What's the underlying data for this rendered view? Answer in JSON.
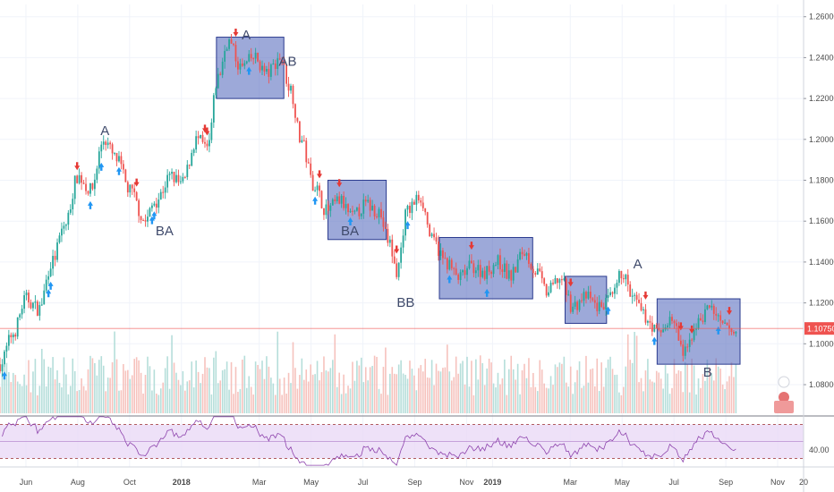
{
  "chart_data": {
    "type": "candlestick",
    "price_axis": {
      "ticks": [
        "1.26000",
        "1.24000",
        "1.22000",
        "1.20000",
        "1.18000",
        "1.16000",
        "1.14000",
        "1.12000",
        "1.10000",
        "1.08000"
      ],
      "range": [
        1.066,
        1.266
      ],
      "current_price_label": "1.10750",
      "current_price": 1.1075,
      "current_price_color": "#ef5350"
    },
    "time_axis": {
      "ticks": [
        "Jun",
        "Aug",
        "Oct",
        "2018",
        "Mar",
        "May",
        "Jul",
        "Sep",
        "Nov",
        "2019",
        "Mar",
        "May",
        "Jul",
        "Sep",
        "Nov",
        "20"
      ],
      "range_months": [
        0,
        31
      ]
    },
    "price_path": [
      {
        "m": 0.0,
        "p": 1.09
      },
      {
        "m": 0.5,
        "p": 1.105
      },
      {
        "m": 1.0,
        "p": 1.122
      },
      {
        "m": 1.5,
        "p": 1.117
      },
      {
        "m": 2.0,
        "p": 1.14
      },
      {
        "m": 2.5,
        "p": 1.158
      },
      {
        "m": 3.0,
        "p": 1.182
      },
      {
        "m": 3.5,
        "p": 1.175
      },
      {
        "m": 4.0,
        "p": 1.2
      },
      {
        "m": 4.5,
        "p": 1.19
      },
      {
        "m": 5.0,
        "p": 1.175
      },
      {
        "m": 5.6,
        "p": 1.16
      },
      {
        "m": 6.0,
        "p": 1.17
      },
      {
        "m": 6.6,
        "p": 1.182
      },
      {
        "m": 7.0,
        "p": 1.178
      },
      {
        "m": 7.6,
        "p": 1.2
      },
      {
        "m": 8.0,
        "p": 1.195
      },
      {
        "m": 8.4,
        "p": 1.23
      },
      {
        "m": 8.8,
        "p": 1.248
      },
      {
        "m": 9.3,
        "p": 1.235
      },
      {
        "m": 9.8,
        "p": 1.24
      },
      {
        "m": 10.3,
        "p": 1.232
      },
      {
        "m": 10.8,
        "p": 1.24
      },
      {
        "m": 11.2,
        "p": 1.225
      },
      {
        "m": 11.6,
        "p": 1.2
      },
      {
        "m": 12.1,
        "p": 1.178
      },
      {
        "m": 12.6,
        "p": 1.165
      },
      {
        "m": 13.1,
        "p": 1.17
      },
      {
        "m": 13.6,
        "p": 1.162
      },
      {
        "m": 14.1,
        "p": 1.168
      },
      {
        "m": 14.6,
        "p": 1.165
      },
      {
        "m": 15.0,
        "p": 1.15
      },
      {
        "m": 15.3,
        "p": 1.135
      },
      {
        "m": 15.7,
        "p": 1.165
      },
      {
        "m": 16.2,
        "p": 1.172
      },
      {
        "m": 16.7,
        "p": 1.15
      },
      {
        "m": 17.2,
        "p": 1.14
      },
      {
        "m": 17.7,
        "p": 1.132
      },
      {
        "m": 18.2,
        "p": 1.138
      },
      {
        "m": 18.7,
        "p": 1.135
      },
      {
        "m": 19.2,
        "p": 1.14
      },
      {
        "m": 19.7,
        "p": 1.133
      },
      {
        "m": 20.2,
        "p": 1.145
      },
      {
        "m": 20.7,
        "p": 1.135
      },
      {
        "m": 21.1,
        "p": 1.125
      },
      {
        "m": 21.6,
        "p": 1.132
      },
      {
        "m": 22.1,
        "p": 1.118
      },
      {
        "m": 22.6,
        "p": 1.123
      },
      {
        "m": 23.1,
        "p": 1.118
      },
      {
        "m": 23.6,
        "p": 1.122
      },
      {
        "m": 24.0,
        "p": 1.135
      },
      {
        "m": 24.4,
        "p": 1.122
      },
      {
        "m": 24.9,
        "p": 1.113
      },
      {
        "m": 25.4,
        "p": 1.105
      },
      {
        "m": 25.9,
        "p": 1.112
      },
      {
        "m": 26.4,
        "p": 1.095
      },
      {
        "m": 26.9,
        "p": 1.11
      },
      {
        "m": 27.4,
        "p": 1.118
      },
      {
        "m": 27.9,
        "p": 1.108
      },
      {
        "m": 28.4,
        "p": 1.105
      }
    ],
    "boxes": [
      {
        "m0": 8.35,
        "m1": 10.95,
        "p0": 1.25,
        "p1": 1.22
      },
      {
        "m0": 12.65,
        "m1": 14.9,
        "p0": 1.18,
        "p1": 1.151
      },
      {
        "m0": 16.95,
        "m1": 20.55,
        "p0": 1.152,
        "p1": 1.122
      },
      {
        "m0": 21.8,
        "m1": 23.4,
        "p0": 1.133,
        "p1": 1.11
      },
      {
        "m0": 25.35,
        "m1": 28.55,
        "p0": 1.122,
        "p1": 1.09
      }
    ],
    "annotations": [
      {
        "text": "A",
        "m": 4.05,
        "p": 1.202
      },
      {
        "text": "BA",
        "m": 6.35,
        "p": 1.153
      },
      {
        "text": "A",
        "m": 9.5,
        "p": 1.249
      },
      {
        "text": "AB",
        "m": 11.1,
        "p": 1.236
      },
      {
        "text": "BA",
        "m": 13.5,
        "p": 1.153
      },
      {
        "text": "BB",
        "m": 15.65,
        "p": 1.118
      },
      {
        "text": "A",
        "m": 24.6,
        "p": 1.137
      },
      {
        "text": "B",
        "m": 27.3,
        "p": 1.084
      }
    ],
    "rsi": {
      "ticks": [
        "40.00"
      ],
      "range": [
        20,
        80
      ],
      "upper_band": 70,
      "lower_band": 30,
      "mid_line": 50
    },
    "colors": {
      "up": "#26a69a",
      "down": "#ef5350",
      "box_fill": "#5b6fbf",
      "box_stroke": "#2b3b8f",
      "rsi_line": "#8e44ad",
      "rsi_fill": "#ead9f6",
      "buy_arrow": "#2196f3",
      "sell_arrow": "#e53935"
    }
  }
}
